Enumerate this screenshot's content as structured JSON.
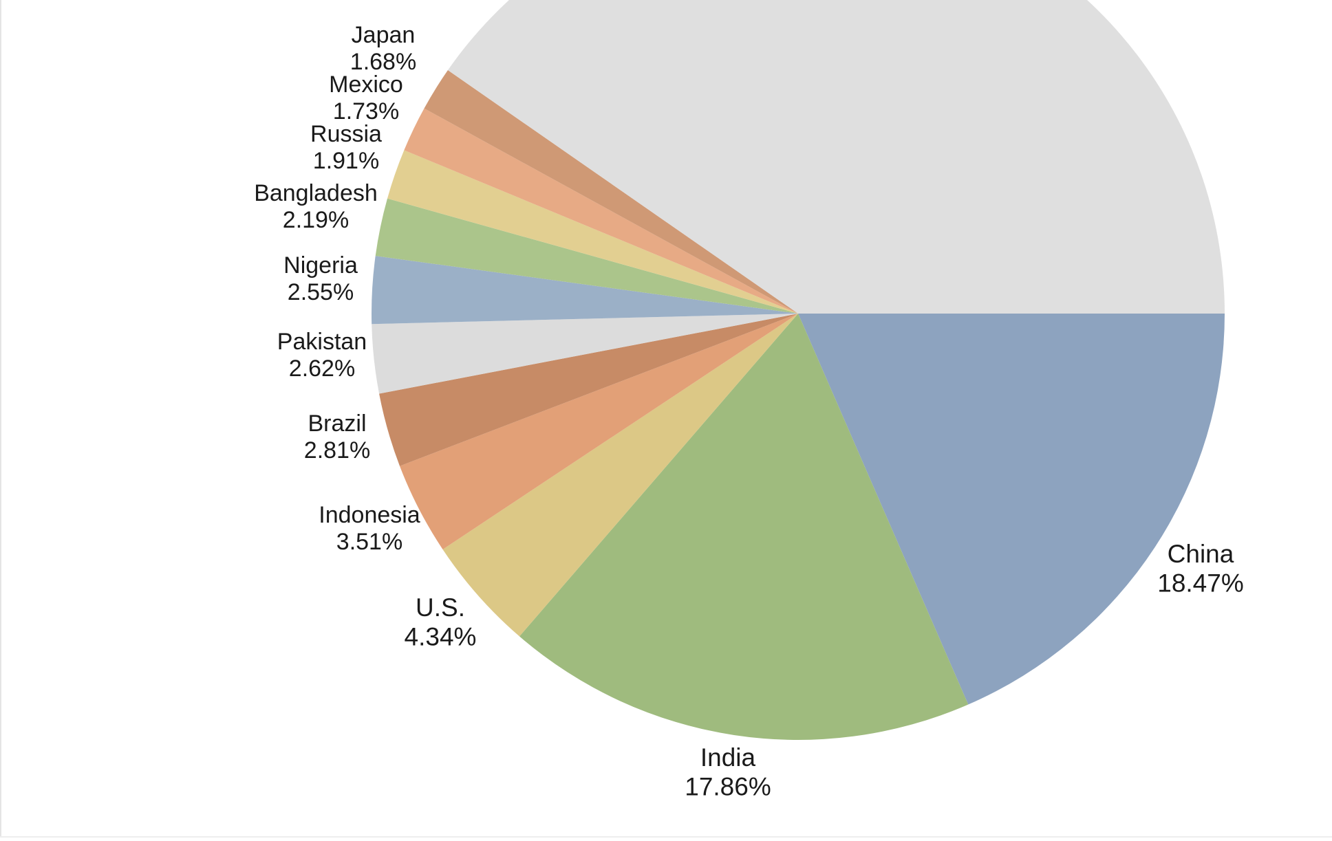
{
  "chart_data": {
    "type": "pie",
    "title": "",
    "start_angle_deg": 0,
    "direction": "clockwise",
    "slices": [
      {
        "label": "China",
        "value": 18.47,
        "value_label": "18.47%",
        "color": "#8da3bf"
      },
      {
        "label": "India",
        "value": 17.86,
        "value_label": "17.86%",
        "color": "#9fbb7e"
      },
      {
        "label": "U.S.",
        "value": 4.34,
        "value_label": "4.34%",
        "color": "#dcc886"
      },
      {
        "label": "Indonesia",
        "value": 3.51,
        "value_label": "3.51%",
        "color": "#e2a077"
      },
      {
        "label": "Brazil",
        "value": 2.81,
        "value_label": "2.81%",
        "color": "#c78b66"
      },
      {
        "label": "Pakistan",
        "value": 2.62,
        "value_label": "2.62%",
        "color": "#dcdcdc"
      },
      {
        "label": "Nigeria",
        "value": 2.55,
        "value_label": "2.55%",
        "color": "#9bb0c7"
      },
      {
        "label": "Bangladesh",
        "value": 2.19,
        "value_label": "2.19%",
        "color": "#abc58b"
      },
      {
        "label": "Russia",
        "value": 1.91,
        "value_label": "1.91%",
        "color": "#e2cf91"
      },
      {
        "label": "Mexico",
        "value": 1.73,
        "value_label": "1.73%",
        "color": "#e7aa85"
      },
      {
        "label": "Japan",
        "value": 1.68,
        "value_label": "1.68%",
        "color": "#cf9975"
      },
      {
        "label": "",
        "value": 40.33,
        "value_label": "",
        "color": "#dfdfdf"
      }
    ]
  }
}
